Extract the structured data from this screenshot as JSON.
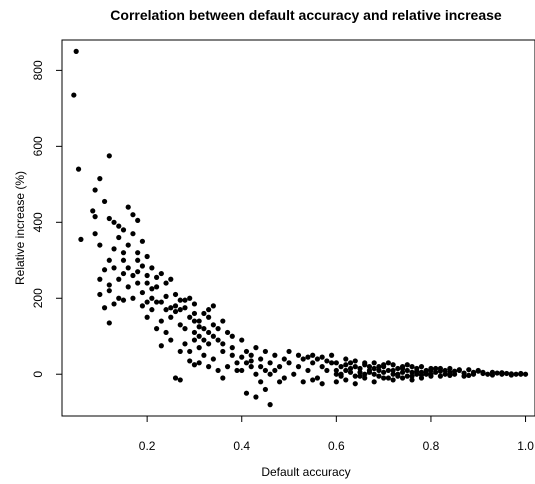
{
  "chart_data": {
    "type": "scatter",
    "title": "Correlation between default accuracy and relative increase",
    "xlabel": "Default accuracy",
    "ylabel": "Relative increase (%)",
    "xlim": [
      0.02,
      1.02
    ],
    "ylim": [
      -110,
      880
    ],
    "x_ticks": [
      0.2,
      0.4,
      0.6,
      0.8,
      1.0
    ],
    "x_tick_labels": [
      "0.2",
      "0.4",
      "0.6",
      "0.8",
      "1.0"
    ],
    "y_ticks": [
      0,
      200,
      400,
      600,
      800
    ],
    "y_tick_labels": [
      "0",
      "200",
      "400",
      "600",
      "800"
    ],
    "grid": false,
    "legend": "none",
    "marker_color": "#000000",
    "series": [
      {
        "points": [
          [
            0.05,
            850
          ],
          [
            0.045,
            735
          ],
          [
            0.055,
            540
          ],
          [
            0.06,
            355
          ],
          [
            0.12,
            575
          ],
          [
            0.1,
            515
          ],
          [
            0.09,
            485
          ],
          [
            0.085,
            430
          ],
          [
            0.09,
            415
          ],
          [
            0.11,
            455
          ],
          [
            0.12,
            410
          ],
          [
            0.13,
            400
          ],
          [
            0.14,
            390
          ],
          [
            0.15,
            380
          ],
          [
            0.16,
            440
          ],
          [
            0.17,
            420
          ],
          [
            0.18,
            405
          ],
          [
            0.17,
            370
          ],
          [
            0.19,
            350
          ],
          [
            0.2,
            310
          ],
          [
            0.18,
            300
          ],
          [
            0.15,
            320
          ],
          [
            0.13,
            330
          ],
          [
            0.12,
            300
          ],
          [
            0.11,
            275
          ],
          [
            0.1,
            250
          ],
          [
            0.12,
            235
          ],
          [
            0.14,
            250
          ],
          [
            0.15,
            265
          ],
          [
            0.16,
            280
          ],
          [
            0.18,
            270
          ],
          [
            0.2,
            260
          ],
          [
            0.22,
            255
          ],
          [
            0.24,
            240
          ],
          [
            0.21,
            225
          ],
          [
            0.19,
            215
          ],
          [
            0.17,
            200
          ],
          [
            0.15,
            195
          ],
          [
            0.13,
            185
          ],
          [
            0.12,
            220
          ],
          [
            0.11,
            175
          ],
          [
            0.1,
            210
          ],
          [
            0.12,
            135
          ],
          [
            0.09,
            370
          ],
          [
            0.1,
            340
          ],
          [
            0.14,
            360
          ],
          [
            0.16,
            340
          ],
          [
            0.18,
            320
          ],
          [
            0.19,
            285
          ],
          [
            0.21,
            280
          ],
          [
            0.23,
            265
          ],
          [
            0.25,
            250
          ],
          [
            0.22,
            230
          ],
          [
            0.24,
            205
          ],
          [
            0.26,
            210
          ],
          [
            0.27,
            195
          ],
          [
            0.29,
            200
          ],
          [
            0.3,
            185
          ],
          [
            0.28,
            175
          ],
          [
            0.26,
            165
          ],
          [
            0.25,
            150
          ],
          [
            0.23,
            140
          ],
          [
            0.21,
            170
          ],
          [
            0.2,
            150
          ],
          [
            0.19,
            180
          ],
          [
            0.22,
            120
          ],
          [
            0.24,
            110
          ],
          [
            0.25,
            90
          ],
          [
            0.23,
            75
          ],
          [
            0.27,
            130
          ],
          [
            0.28,
            120
          ],
          [
            0.3,
            110
          ],
          [
            0.31,
            140
          ],
          [
            0.32,
            160
          ],
          [
            0.33,
            150
          ],
          [
            0.34,
            130
          ],
          [
            0.35,
            120
          ],
          [
            0.36,
            140
          ],
          [
            0.37,
            110
          ],
          [
            0.38,
            100
          ],
          [
            0.35,
            90
          ],
          [
            0.33,
            80
          ],
          [
            0.31,
            70
          ],
          [
            0.3,
            90
          ],
          [
            0.29,
            60
          ],
          [
            0.32,
            50
          ],
          [
            0.34,
            40
          ],
          [
            0.36,
            60
          ],
          [
            0.38,
            70
          ],
          [
            0.4,
            90
          ],
          [
            0.41,
            60
          ],
          [
            0.42,
            50
          ],
          [
            0.43,
            70
          ],
          [
            0.44,
            40
          ],
          [
            0.45,
            60
          ],
          [
            0.46,
            30
          ],
          [
            0.47,
            50
          ],
          [
            0.48,
            20
          ],
          [
            0.49,
            40
          ],
          [
            0.5,
            30
          ],
          [
            0.42,
            20
          ],
          [
            0.43,
            0
          ],
          [
            0.44,
            -20
          ],
          [
            0.45,
            -40
          ],
          [
            0.46,
            -80
          ],
          [
            0.43,
            -60
          ],
          [
            0.41,
            -50
          ],
          [
            0.4,
            10
          ],
          [
            0.39,
            30
          ],
          [
            0.37,
            20
          ],
          [
            0.35,
            10
          ],
          [
            0.36,
            -10
          ],
          [
            0.26,
            -10
          ],
          [
            0.27,
            -15
          ],
          [
            0.33,
            20
          ],
          [
            0.31,
            30
          ],
          [
            0.29,
            35
          ],
          [
            0.27,
            60
          ],
          [
            0.28,
            80
          ],
          [
            0.3,
            25
          ],
          [
            0.5,
            60
          ],
          [
            0.51,
            0
          ],
          [
            0.52,
            20
          ],
          [
            0.53,
            40
          ],
          [
            0.54,
            10
          ],
          [
            0.55,
            30
          ],
          [
            0.56,
            -10
          ],
          [
            0.57,
            20
          ],
          [
            0.58,
            10
          ],
          [
            0.59,
            30
          ],
          [
            0.6,
            0
          ],
          [
            0.61,
            20
          ],
          [
            0.62,
            10
          ],
          [
            0.63,
            30
          ],
          [
            0.64,
            -5
          ],
          [
            0.65,
            15
          ],
          [
            0.66,
            25
          ],
          [
            0.67,
            5
          ],
          [
            0.68,
            15
          ],
          [
            0.69,
            -5
          ],
          [
            0.7,
            20
          ],
          [
            0.71,
            10
          ],
          [
            0.72,
            0
          ],
          [
            0.73,
            15
          ],
          [
            0.74,
            5
          ],
          [
            0.75,
            10
          ],
          [
            0.76,
            -5
          ],
          [
            0.77,
            15
          ],
          [
            0.78,
            5
          ],
          [
            0.79,
            0
          ],
          [
            0.8,
            10
          ],
          [
            0.81,
            5
          ],
          [
            0.82,
            -5
          ],
          [
            0.83,
            10
          ],
          [
            0.84,
            5
          ],
          [
            0.85,
            0
          ],
          [
            0.86,
            10
          ],
          [
            0.87,
            3
          ],
          [
            0.88,
            -3
          ],
          [
            0.89,
            5
          ],
          [
            0.9,
            8
          ],
          [
            0.91,
            2
          ],
          [
            0.92,
            0
          ],
          [
            0.93,
            5
          ],
          [
            0.94,
            3
          ],
          [
            0.95,
            0
          ],
          [
            0.96,
            2
          ],
          [
            0.97,
            1
          ],
          [
            0.98,
            0
          ],
          [
            0.99,
            0
          ],
          [
            1.0,
            0
          ],
          [
            0.53,
            -20
          ],
          [
            0.55,
            -15
          ],
          [
            0.57,
            -25
          ],
          [
            0.6,
            -20
          ],
          [
            0.62,
            -15
          ],
          [
            0.64,
            -25
          ],
          [
            0.66,
            -10
          ],
          [
            0.68,
            -20
          ],
          [
            0.7,
            -10
          ],
          [
            0.72,
            -15
          ],
          [
            0.74,
            -10
          ],
          [
            0.76,
            -15
          ],
          [
            0.78,
            -10
          ],
          [
            0.8,
            -5
          ],
          [
            0.52,
            50
          ],
          [
            0.54,
            45
          ],
          [
            0.56,
            40
          ],
          [
            0.58,
            35
          ],
          [
            0.6,
            30
          ],
          [
            0.62,
            40
          ],
          [
            0.64,
            35
          ],
          [
            0.66,
            30
          ],
          [
            0.68,
            30
          ],
          [
            0.7,
            25
          ],
          [
            0.72,
            25
          ],
          [
            0.74,
            20
          ],
          [
            0.76,
            20
          ],
          [
            0.78,
            20
          ],
          [
            0.8,
            15
          ],
          [
            0.82,
            15
          ],
          [
            0.84,
            15
          ],
          [
            0.86,
            12
          ],
          [
            0.88,
            12
          ],
          [
            0.9,
            10
          ],
          [
            0.47,
            10
          ],
          [
            0.48,
            -20
          ],
          [
            0.49,
            -10
          ],
          [
            0.46,
            0
          ],
          [
            0.45,
            10
          ],
          [
            0.44,
            20
          ],
          [
            0.34,
            100
          ],
          [
            0.32,
            120
          ],
          [
            0.29,
            150
          ],
          [
            0.33,
            170
          ],
          [
            0.34,
            180
          ],
          [
            0.28,
            195
          ],
          [
            0.26,
            180
          ],
          [
            0.24,
            170
          ],
          [
            0.22,
            190
          ],
          [
            0.2,
            190
          ],
          [
            0.16,
            230
          ],
          [
            0.14,
            200
          ],
          [
            0.2,
            240
          ],
          [
            0.3,
            160
          ],
          [
            0.31,
            100
          ],
          [
            0.32,
            90
          ],
          [
            0.33,
            110
          ],
          [
            0.36,
            80
          ],
          [
            0.38,
            50
          ],
          [
            0.39,
            10
          ],
          [
            0.4,
            45
          ],
          [
            0.41,
            30
          ],
          [
            0.42,
            35
          ],
          [
            0.15,
            300
          ],
          [
            0.13,
            280
          ],
          [
            0.17,
            260
          ],
          [
            0.18,
            240
          ],
          [
            0.21,
            200
          ],
          [
            0.23,
            190
          ],
          [
            0.25,
            175
          ],
          [
            0.27,
            170
          ],
          [
            0.3,
            140
          ],
          [
            0.31,
            125
          ],
          [
            0.55,
            50
          ],
          [
            0.57,
            45
          ],
          [
            0.59,
            50
          ],
          [
            0.61,
            0
          ],
          [
            0.63,
            5
          ],
          [
            0.65,
            -5
          ],
          [
            0.67,
            20
          ],
          [
            0.69,
            10
          ],
          [
            0.71,
            30
          ],
          [
            0.73,
            -5
          ],
          [
            0.75,
            25
          ],
          [
            0.77,
            0
          ],
          [
            0.79,
            10
          ],
          [
            0.81,
            15
          ],
          [
            0.83,
            0
          ],
          [
            0.85,
            8
          ],
          [
            0.87,
            -5
          ],
          [
            0.89,
            0
          ],
          [
            0.91,
            5
          ],
          [
            0.93,
            -2
          ],
          [
            0.95,
            4
          ],
          [
            0.97,
            -2
          ],
          [
            0.99,
            2
          ],
          [
            0.6,
            10
          ],
          [
            0.61,
            -5
          ],
          [
            0.62,
            25
          ],
          [
            0.63,
            15
          ],
          [
            0.64,
            20
          ],
          [
            0.65,
            5
          ],
          [
            0.66,
            0
          ],
          [
            0.67,
            10
          ],
          [
            0.68,
            0
          ],
          [
            0.69,
            20
          ],
          [
            0.7,
            5
          ],
          [
            0.71,
            -10
          ],
          [
            0.72,
            10
          ],
          [
            0.73,
            0
          ],
          [
            0.74,
            15
          ],
          [
            0.75,
            -5
          ],
          [
            0.76,
            5
          ],
          [
            0.77,
            8
          ],
          [
            0.78,
            -2
          ],
          [
            0.79,
            5
          ],
          [
            0.8,
            0
          ],
          [
            0.82,
            8
          ],
          [
            0.84,
            -3
          ]
        ]
      }
    ]
  }
}
